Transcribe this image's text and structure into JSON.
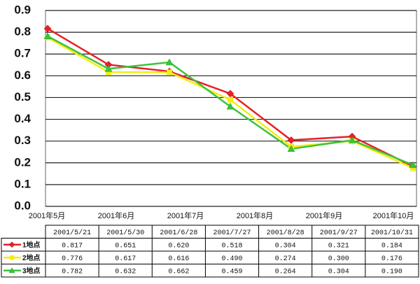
{
  "chart_data": {
    "type": "line",
    "categories": [
      "2001/5/21",
      "2001/5/30",
      "2001/6/28",
      "2001/7/27",
      "2001/8/28",
      "2001/9/27",
      "2001/10/31"
    ],
    "x_axis_labels": [
      "2001年5月",
      "2001年6月",
      "2001年7月",
      "2001年8月",
      "2001年9月",
      "2001年10月"
    ],
    "series": [
      {
        "name": "1地点",
        "color": "#e8202a",
        "marker": "diamond",
        "values": [
          0.817,
          0.651,
          0.62,
          0.518,
          0.304,
          0.321,
          0.184
        ],
        "value_labels": [
          "0.817",
          "0.651",
          "0.620",
          "0.518",
          "0.304",
          "0.321",
          "0.184"
        ]
      },
      {
        "name": "2地点",
        "color": "#f2ee10",
        "marker": "square",
        "values": [
          0.776,
          0.617,
          0.616,
          0.49,
          0.274,
          0.3,
          0.176
        ],
        "value_labels": [
          "0.776",
          "0.617",
          "0.616",
          "0.490",
          "0.274",
          "0.300",
          "0.176"
        ]
      },
      {
        "name": "3地点",
        "color": "#3cc23c",
        "marker": "triangle",
        "values": [
          0.782,
          0.632,
          0.662,
          0.459,
          0.264,
          0.304,
          0.19
        ],
        "value_labels": [
          "0.782",
          "0.632",
          "0.662",
          "0.459",
          "0.264",
          "0.304",
          "0.190"
        ]
      }
    ],
    "ylim": [
      0,
      0.9
    ],
    "yticks": [
      {
        "value": 0,
        "label": "0.0"
      },
      0.1,
      0.2,
      0.3,
      0.4,
      0.5,
      0.6,
      0.7,
      0.8,
      0.9
    ],
    "grid": true
  }
}
